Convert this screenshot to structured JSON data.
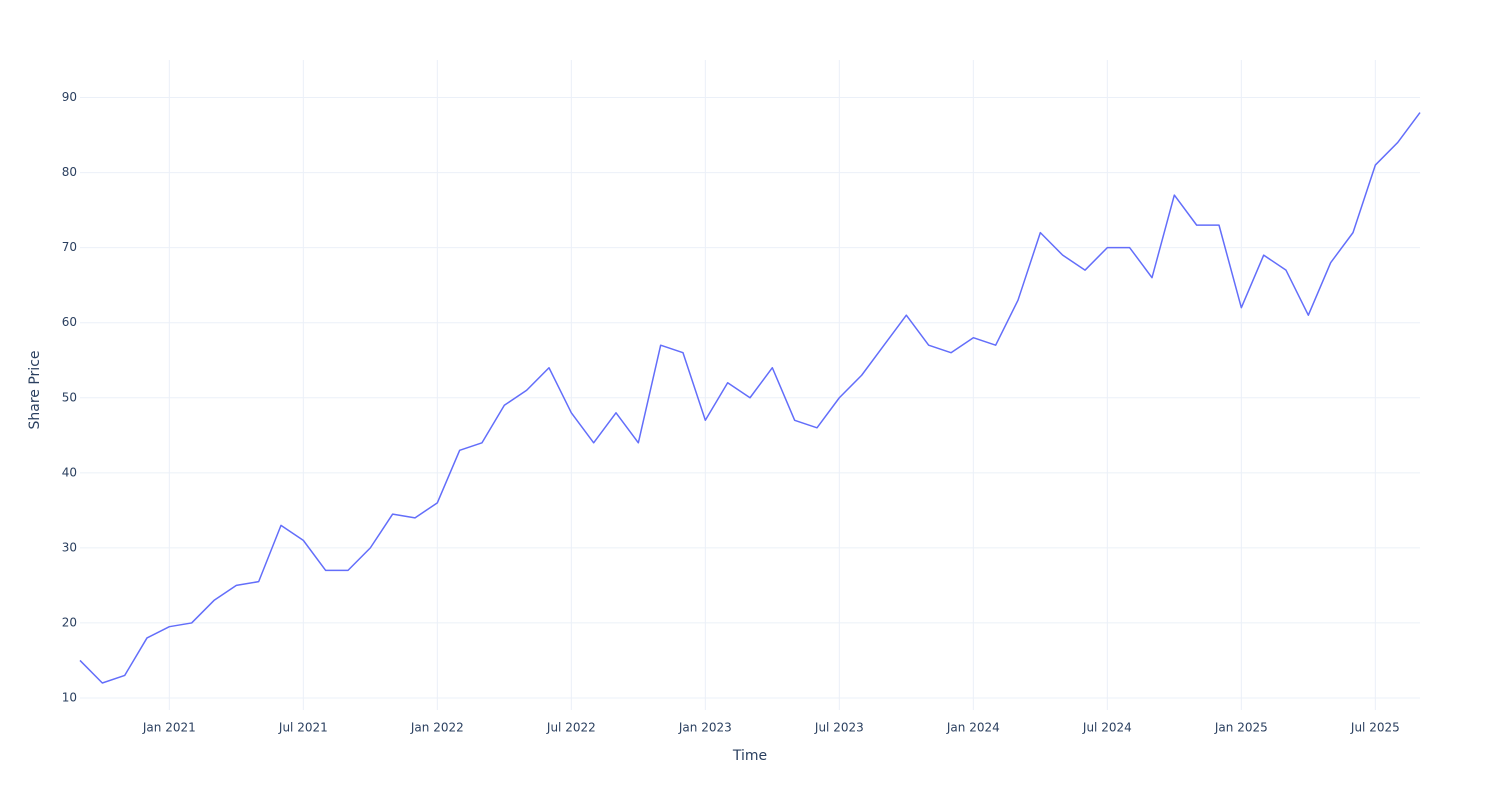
{
  "chart_data": {
    "type": "line",
    "x_label": "Time",
    "y_label": "Share Price",
    "x": [
      "2020-09",
      "2020-10",
      "2020-11",
      "2020-12",
      "2021-01",
      "2021-02",
      "2021-03",
      "2021-04",
      "2021-05",
      "2021-06",
      "2021-07",
      "2021-08",
      "2021-09",
      "2021-10",
      "2021-11",
      "2021-12",
      "2022-01",
      "2022-02",
      "2022-03",
      "2022-04",
      "2022-05",
      "2022-06",
      "2022-07",
      "2022-08",
      "2022-09",
      "2022-10",
      "2022-11",
      "2022-12",
      "2023-01",
      "2023-02",
      "2023-03",
      "2023-04",
      "2023-05",
      "2023-06",
      "2023-07",
      "2023-08",
      "2023-09",
      "2023-10",
      "2023-11",
      "2023-12",
      "2024-01",
      "2024-02",
      "2024-03",
      "2024-04",
      "2024-05",
      "2024-06",
      "2024-07",
      "2024-08",
      "2024-09",
      "2024-10",
      "2024-11",
      "2024-12",
      "2025-01",
      "2025-02",
      "2025-03",
      "2025-04",
      "2025-05",
      "2025-06",
      "2025-07",
      "2025-08",
      "2025-09"
    ],
    "series": [
      {
        "color": "#636efa",
        "values": [
          15,
          12,
          13,
          18,
          19.5,
          20,
          23,
          25,
          25.5,
          33,
          31,
          27,
          27,
          30,
          34.5,
          34,
          36,
          43,
          44,
          49,
          51,
          54,
          48,
          44,
          48,
          44,
          57,
          56,
          47,
          52,
          50,
          54,
          47,
          46,
          50,
          53,
          57,
          61,
          57,
          56,
          58,
          57,
          63,
          72,
          69,
          67,
          70,
          70,
          66,
          77,
          73,
          73,
          62,
          69,
          67,
          61,
          68,
          72,
          81,
          84,
          88
        ]
      }
    ],
    "xlim": [
      "2020-09",
      "2025-09"
    ],
    "xticks": [
      {
        "value": "2021-01",
        "label": "Jan 2021"
      },
      {
        "value": "2021-07",
        "label": "Jul 2021"
      },
      {
        "value": "2022-01",
        "label": "Jan 2022"
      },
      {
        "value": "2022-07",
        "label": "Jul 2022"
      },
      {
        "value": "2023-01",
        "label": "Jan 2023"
      },
      {
        "value": "2023-07",
        "label": "Jul 2023"
      },
      {
        "value": "2024-01",
        "label": "Jan 2024"
      },
      {
        "value": "2024-07",
        "label": "Jul 2024"
      },
      {
        "value": "2025-01",
        "label": "Jan 2025"
      },
      {
        "value": "2025-07",
        "label": "Jul 2025"
      }
    ],
    "ylim": [
      8.4,
      95
    ],
    "yticks": [
      10,
      20,
      30,
      40,
      50,
      60,
      70,
      80,
      90
    ],
    "grid": true
  }
}
